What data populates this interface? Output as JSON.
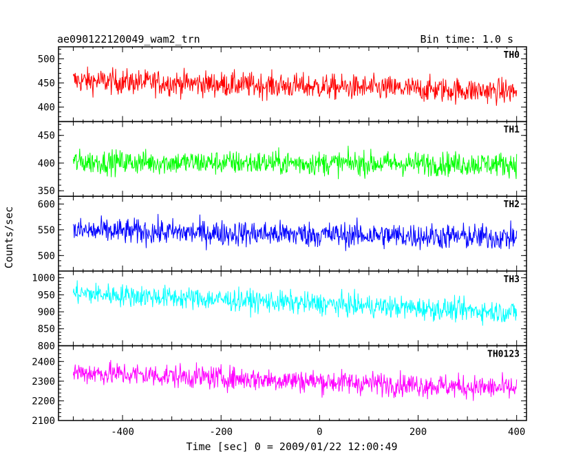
{
  "chart_data": {
    "type": "line",
    "title": "ae090122120049_wam2_trn",
    "subtitle": "Bin time: 1.0 s",
    "xlabel": "Time [sec] 0 = 2009/01/22 12:00:49",
    "ylabel": "Counts/sec",
    "xlim": [
      -530,
      420
    ],
    "x_range": [
      -500,
      400
    ],
    "x_step": 1,
    "x_ticks": [
      -400,
      -200,
      0,
      200,
      400
    ],
    "grid": false,
    "series": [
      {
        "name": "TH0",
        "color": "#ff0000",
        "ylim": [
          370,
          525
        ],
        "y_ticks": [
          400,
          450,
          500
        ],
        "mean_start": 455,
        "mean_end": 432,
        "noise": 24
      },
      {
        "name": "TH1",
        "color": "#00ff00",
        "ylim": [
          340,
          475
        ],
        "y_ticks": [
          350,
          400,
          450
        ],
        "mean_start": 402,
        "mean_end": 398,
        "noise": 20
      },
      {
        "name": "TH2",
        "color": "#0000ff",
        "ylim": [
          470,
          615
        ],
        "y_ticks": [
          500,
          550,
          600
        ],
        "mean_start": 548,
        "mean_end": 535,
        "noise": 23
      },
      {
        "name": "TH3",
        "color": "#00ffff",
        "ylim": [
          800,
          1020
        ],
        "y_ticks": [
          800,
          850,
          900,
          950,
          1000
        ],
        "mean_start": 955,
        "mean_end": 898,
        "noise": 30
      },
      {
        "name": "TH0123",
        "color": "#ff00ff",
        "ylim": [
          2100,
          2480
        ],
        "y_ticks": [
          2100,
          2200,
          2300,
          2400
        ],
        "mean_start": 2345,
        "mean_end": 2262,
        "noise": 55
      }
    ]
  }
}
